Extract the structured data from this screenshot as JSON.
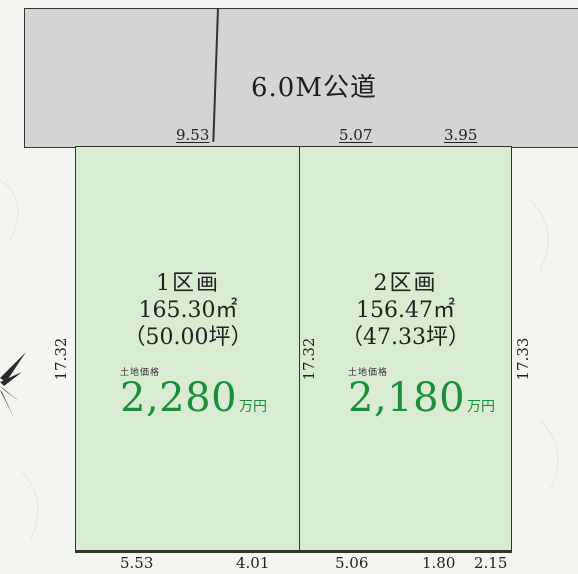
{
  "road": {
    "label": "6.0M公道"
  },
  "lots": [
    {
      "name": "1区画",
      "area": "165.30㎡",
      "tsubo": "（50.00坪）",
      "price_label": "土地価格",
      "price": "2,280",
      "price_unit": "万円"
    },
    {
      "name": "2区画",
      "area": "156.47㎡",
      "tsubo": "（47.33坪）",
      "price_label": "土地価格",
      "price": "2,180",
      "price_unit": "万円"
    }
  ],
  "dimensions": {
    "top": [
      "9.53",
      "5.07",
      "3.95"
    ],
    "bottom": [
      "5.53",
      "4.01",
      "5.06",
      "1.80",
      "2.15"
    ],
    "left": "17.32",
    "middle": "17.32",
    "right": "17.33"
  },
  "colors": {
    "lot_fill": "#d9ebd2",
    "road_fill": "#d3d4d3",
    "price": "#1b8e3a"
  }
}
